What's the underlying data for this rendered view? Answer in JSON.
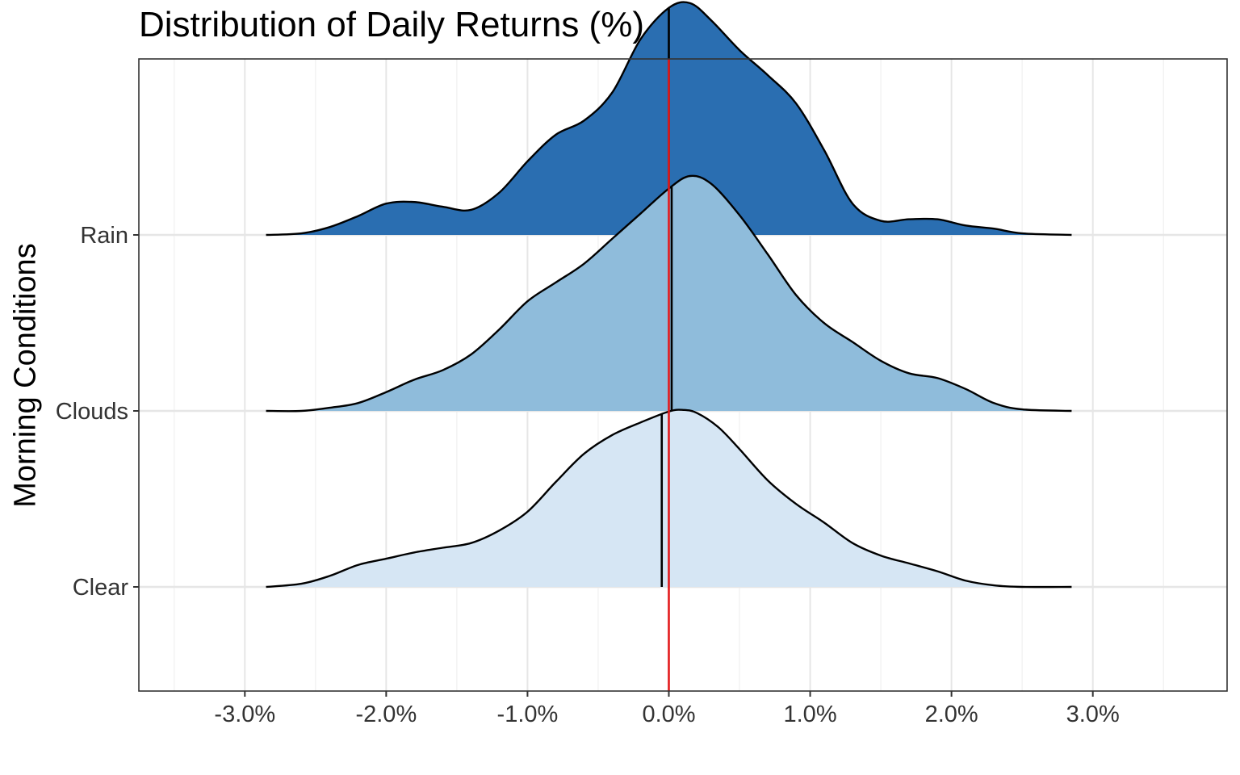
{
  "chart_data": {
    "type": "ridgeline",
    "title": "Distribution of Daily Returns (%)",
    "xlabel": "",
    "ylabel": "Morning Conditions",
    "xlim": [
      -3.75,
      3.95
    ],
    "x_ticks": [
      -3.0,
      -2.0,
      -1.0,
      0.0,
      1.0,
      2.0,
      3.0
    ],
    "x_tick_labels": [
      "-3.0%",
      "-2.0%",
      "-1.0%",
      "0.0%",
      "1.0%",
      "2.0%",
      "3.0%"
    ],
    "x_minor_ticks": [
      -3.5,
      -2.5,
      -1.5,
      -0.5,
      0.5,
      1.5,
      2.5,
      3.5
    ],
    "categories": [
      "Clear",
      "Clouds",
      "Rain"
    ],
    "grid": true,
    "reference_line": {
      "x": 0.0,
      "color": "#e31a1c"
    },
    "series": [
      {
        "name": "Clear",
        "fill": "#d6e6f4",
        "median": -0.05,
        "density_x": [
          -2.85,
          -2.6,
          -2.4,
          -2.2,
          -2.0,
          -1.8,
          -1.6,
          -1.4,
          -1.2,
          -1.0,
          -0.8,
          -0.6,
          -0.4,
          -0.2,
          0.0,
          0.1,
          0.2,
          0.35,
          0.5,
          0.7,
          0.9,
          1.1,
          1.3,
          1.5,
          1.7,
          1.9,
          2.1,
          2.3,
          2.5,
          2.85
        ],
        "density_y": [
          0.0,
          0.02,
          0.07,
          0.14,
          0.18,
          0.22,
          0.25,
          0.28,
          0.36,
          0.48,
          0.67,
          0.85,
          0.97,
          1.05,
          1.12,
          1.13,
          1.11,
          1.02,
          0.88,
          0.68,
          0.53,
          0.41,
          0.28,
          0.2,
          0.15,
          0.1,
          0.04,
          0.01,
          0.0,
          0.0
        ]
      },
      {
        "name": "Clouds",
        "fill": "#8fbcdb",
        "median": 0.02,
        "density_x": [
          -2.85,
          -2.6,
          -2.4,
          -2.2,
          -2.0,
          -1.8,
          -1.6,
          -1.4,
          -1.2,
          -1.0,
          -0.8,
          -0.6,
          -0.4,
          -0.2,
          0.0,
          0.15,
          0.3,
          0.5,
          0.7,
          0.9,
          1.1,
          1.3,
          1.5,
          1.7,
          1.9,
          2.1,
          2.3,
          2.5,
          2.85
        ],
        "density_y": [
          0.0,
          0.0,
          0.02,
          0.05,
          0.12,
          0.2,
          0.26,
          0.36,
          0.52,
          0.7,
          0.82,
          0.94,
          1.1,
          1.26,
          1.42,
          1.5,
          1.45,
          1.25,
          1.0,
          0.74,
          0.56,
          0.44,
          0.32,
          0.24,
          0.21,
          0.14,
          0.05,
          0.01,
          0.0
        ]
      },
      {
        "name": "Rain",
        "fill": "#2a6eb1",
        "median": 0.0,
        "density_x": [
          -2.85,
          -2.6,
          -2.4,
          -2.2,
          -2.0,
          -1.8,
          -1.6,
          -1.4,
          -1.2,
          -1.0,
          -0.8,
          -0.6,
          -0.4,
          -0.2,
          0.0,
          0.15,
          0.3,
          0.5,
          0.7,
          0.9,
          1.1,
          1.3,
          1.5,
          1.7,
          1.9,
          2.1,
          2.3,
          2.5,
          2.85
        ],
        "density_y": [
          0.0,
          0.01,
          0.05,
          0.12,
          0.2,
          0.21,
          0.18,
          0.16,
          0.27,
          0.47,
          0.64,
          0.73,
          0.91,
          1.25,
          1.45,
          1.48,
          1.37,
          1.18,
          1.02,
          0.84,
          0.54,
          0.2,
          0.09,
          0.1,
          0.1,
          0.06,
          0.04,
          0.01,
          0.0
        ]
      }
    ]
  }
}
